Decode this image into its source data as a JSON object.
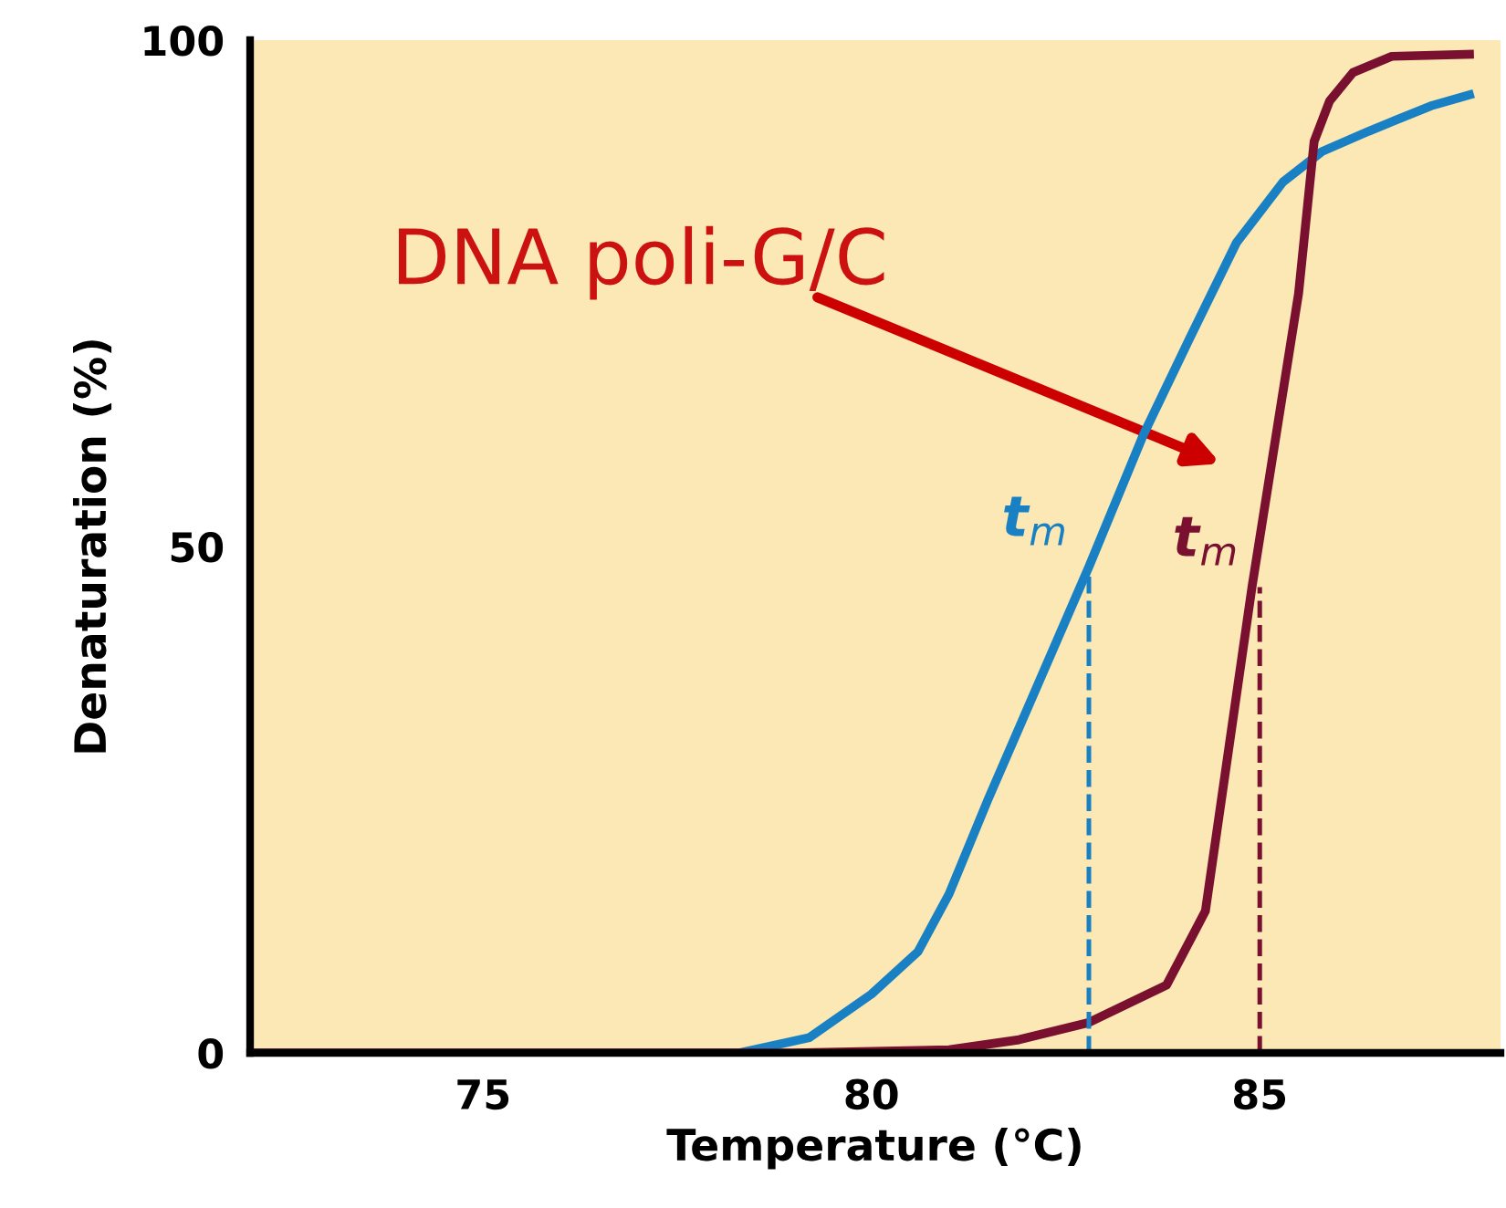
{
  "chart_data": {
    "type": "line",
    "xlabel": "Temperature (°C)",
    "ylabel": "Denaturation (%)",
    "xlim": [
      72,
      88.1
    ],
    "ylim": [
      0,
      100
    ],
    "xticks": [
      75,
      80,
      85
    ],
    "yticks": [
      0,
      50,
      100
    ],
    "grid": false,
    "legend": false,
    "marker": "none",
    "series": [
      {
        "color": "#1a80c4",
        "x": [
          72,
          78.3,
          79.2,
          80,
          80.6,
          81,
          81.5,
          82.8,
          83.5,
          84.1,
          84.7,
          85.3,
          85.8,
          86.4,
          87.2,
          87.7
        ],
        "values": [
          0,
          0,
          1.5,
          5.8,
          10,
          15.7,
          25,
          48,
          61,
          70.6,
          80,
          86,
          89,
          91,
          93.5,
          94.6
        ]
      },
      {
        "color": "#7a1030",
        "x": [
          72,
          79,
          81,
          81.9,
          82.8,
          83.8,
          84.3,
          84.6,
          84.9,
          85.5,
          85.7,
          85.9,
          86.2,
          86.7,
          87.7
        ],
        "values": [
          0,
          0,
          0.3,
          1.3,
          3,
          6.7,
          14,
          30,
          46,
          75,
          90,
          94,
          96.8,
          98.4,
          98.6
        ]
      },
      {
        "color": "#1a80c4",
        "line_style": "dashed",
        "x": [
          82.8,
          82.8
        ],
        "values": [
          0,
          48
        ]
      },
      {
        "color": "#7a1030",
        "line_style": "dashed",
        "x": [
          85.0,
          85.0
        ],
        "values": [
          0,
          46
        ]
      }
    ],
    "annotations": [
      {
        "text": "t$_{m}$",
        "x": 82.8,
        "y": 48
      },
      {
        "text": "t$_{m}$",
        "x": 85.0,
        "y": 46
      },
      "DNA poli-G/C"
    ]
  }
}
